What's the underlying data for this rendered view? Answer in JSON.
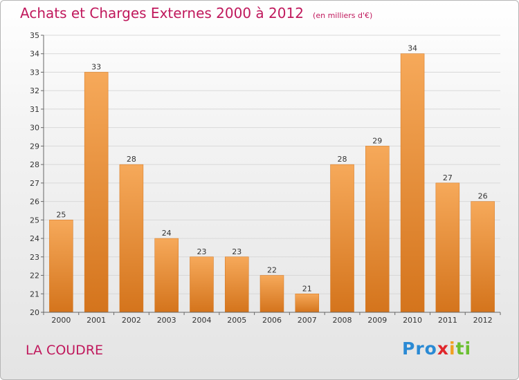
{
  "header": {
    "title": "Achats et Charges Externes 2000 à 2012",
    "subtitle": "(en milliers d'€)"
  },
  "footer": {
    "location": "LA COUDRE",
    "brand": {
      "text": "Proxiti",
      "letter_colors": [
        "#2a8ad4",
        "#2a8ad4",
        "#2a8ad4",
        "#e0262b",
        "#f0a020",
        "#6bbf30",
        "#6bbf30"
      ]
    }
  },
  "colors": {
    "bar_light": "#f6a95a",
    "bar_dark": "#d4741c",
    "axis": "#666666",
    "grid": "#d8d8d8",
    "text": "#333333",
    "accent": "#c0185c"
  },
  "chart_data": {
    "type": "bar",
    "title": "Achats et Charges Externes 2000 à 2012",
    "subtitle": "(en milliers d'€)",
    "xlabel": "",
    "ylabel": "",
    "categories": [
      "2000",
      "2001",
      "2002",
      "2003",
      "2004",
      "2005",
      "2006",
      "2007",
      "2008",
      "2009",
      "2010",
      "2011",
      "2012"
    ],
    "values": [
      25,
      33,
      28,
      24,
      23,
      23,
      22,
      21,
      28,
      29,
      34,
      27,
      26
    ],
    "ylim": [
      20,
      35
    ],
    "yticks": [
      20,
      21,
      22,
      23,
      24,
      25,
      26,
      27,
      28,
      29,
      30,
      31,
      32,
      33,
      34,
      35
    ],
    "grid": true,
    "legend": "none",
    "data_labels": true
  }
}
